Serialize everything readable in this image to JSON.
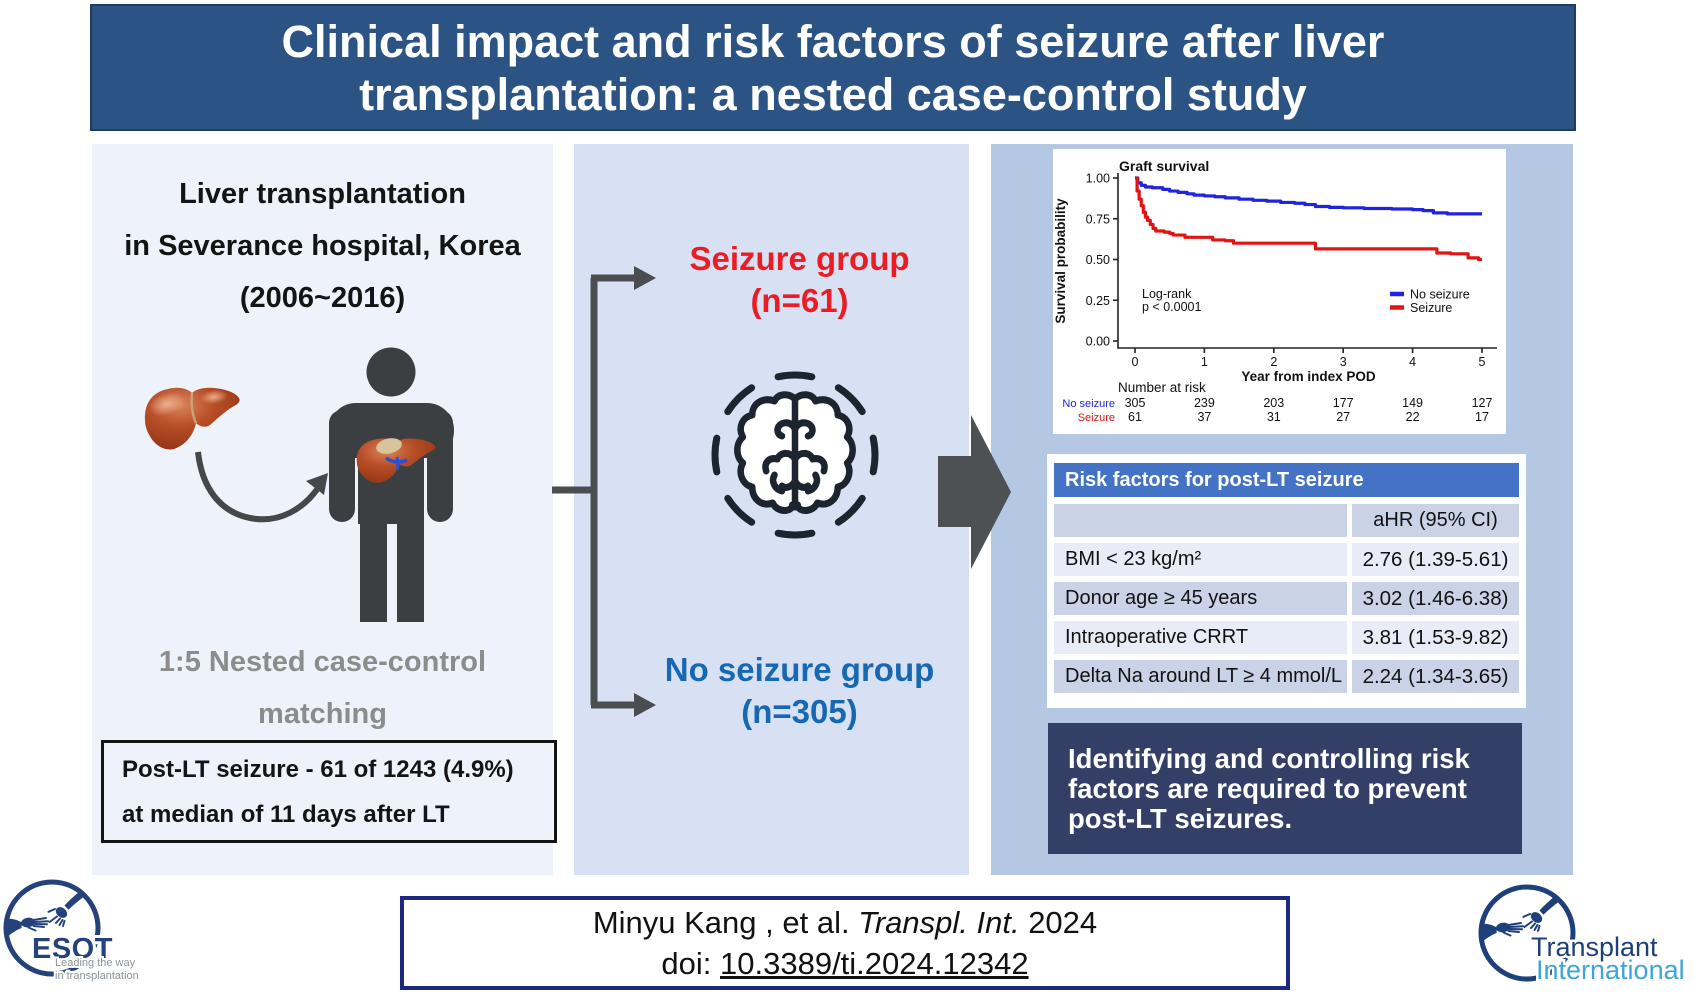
{
  "header": {
    "title_line1": "Clinical impact and risk factors of seizure after liver",
    "title_line2": "transplantation: a nested case-control study"
  },
  "left_panel": {
    "title_line1": "Liver transplantation",
    "title_line2": "in Severance hospital, Korea",
    "title_line3": "(2006~2016)",
    "matching_line1": "1:5 Nested case-control",
    "matching_line2": "matching",
    "box_line1": "Post-LT seizure - 61 of 1243 (4.9%)",
    "box_line2": "at median of 11 days after LT"
  },
  "middle_panel": {
    "seizure_group_line1": "Seizure group",
    "seizure_group_line2": "(n=61)",
    "no_seizure_group_line1": "No seizure group",
    "no_seizure_group_line2": "(n=305)",
    "seizure_color": "#ec1c24",
    "no_seizure_color": "#1668b3"
  },
  "chart_data": {
    "type": "line",
    "subtype": "kaplan-meier-step",
    "title": "Graft survival",
    "xlabel": "Year from index POD",
    "ylabel": "Survival probability",
    "xlim": [
      0,
      5
    ],
    "ylim": [
      0.0,
      1.0
    ],
    "xticks": [
      "0",
      "1",
      "2",
      "3",
      "4",
      "5"
    ],
    "yticks": [
      "0.00",
      "0.25",
      "0.50",
      "0.75",
      "1.00"
    ],
    "grid": false,
    "legend_position": "right-center",
    "annotation_line1": "Log-rank",
    "annotation_line2": "p < 0.0001",
    "series": [
      {
        "name": "No seizure",
        "color": "#1f24dd",
        "steps": [
          [
            0,
            1.0
          ],
          [
            0.04,
            0.97
          ],
          [
            0.09,
            0.955
          ],
          [
            0.15,
            0.945
          ],
          [
            0.25,
            0.94
          ],
          [
            0.4,
            0.93
          ],
          [
            0.5,
            0.92
          ],
          [
            0.62,
            0.912
          ],
          [
            0.75,
            0.903
          ],
          [
            0.85,
            0.895
          ],
          [
            1.0,
            0.89
          ],
          [
            1.15,
            0.885
          ],
          [
            1.3,
            0.878
          ],
          [
            1.5,
            0.87
          ],
          [
            1.7,
            0.863
          ],
          [
            1.9,
            0.858
          ],
          [
            2.1,
            0.85
          ],
          [
            2.3,
            0.845
          ],
          [
            2.45,
            0.837
          ],
          [
            2.6,
            0.825
          ],
          [
            2.8,
            0.82
          ],
          [
            3.0,
            0.817
          ],
          [
            3.3,
            0.813
          ],
          [
            3.7,
            0.81
          ],
          [
            4.0,
            0.806
          ],
          [
            4.15,
            0.8
          ],
          [
            4.3,
            0.786
          ],
          [
            4.5,
            0.78
          ],
          [
            5.0,
            0.78
          ]
        ]
      },
      {
        "name": "Seizure",
        "color": "#e01414",
        "steps": [
          [
            0,
            1.0
          ],
          [
            0.03,
            0.92
          ],
          [
            0.06,
            0.87
          ],
          [
            0.09,
            0.83
          ],
          [
            0.12,
            0.79
          ],
          [
            0.15,
            0.76
          ],
          [
            0.18,
            0.74
          ],
          [
            0.22,
            0.715
          ],
          [
            0.26,
            0.69
          ],
          [
            0.3,
            0.675
          ],
          [
            0.42,
            0.668
          ],
          [
            0.5,
            0.66
          ],
          [
            0.55,
            0.65
          ],
          [
            0.72,
            0.636
          ],
          [
            1.12,
            0.62
          ],
          [
            1.3,
            0.615
          ],
          [
            1.42,
            0.6
          ],
          [
            2.6,
            0.565
          ],
          [
            4.35,
            0.54
          ],
          [
            4.55,
            0.535
          ],
          [
            4.8,
            0.51
          ],
          [
            4.95,
            0.5
          ],
          [
            5.0,
            0.5
          ]
        ]
      }
    ],
    "number_at_risk": {
      "title": "Number at risk",
      "rows": [
        {
          "label": "No seizure",
          "color": "#1f24dd",
          "values": [
            "305",
            "239",
            "203",
            "177",
            "149",
            "127"
          ]
        },
        {
          "label": "Seizure",
          "color": "#e01414",
          "values": [
            "61",
            "37",
            "31",
            "27",
            "22",
            "17"
          ]
        }
      ]
    }
  },
  "risk_table": {
    "header": "Risk factors for post-LT seizure",
    "header_bg": "#4472c4",
    "col_header": "aHR (95% CI)",
    "rows": [
      {
        "label": "BMI < 23 kg/m²",
        "value": "2.76 (1.39-5.61)"
      },
      {
        "label": "Donor age ≥ 45 years",
        "value": "3.02 (1.46-6.38)"
      },
      {
        "label": "Intraoperative CRRT",
        "value": "3.81 (1.53-9.82)"
      },
      {
        "label": "Delta Na around LT ≥ 4 mmol/L",
        "value": "2.24 (1.34-3.65)"
      }
    ],
    "row_color_dark": "#c9d2e7",
    "row_color_light": "#e8ecf6"
  },
  "conclusion": {
    "line1": "Identifying and controlling risk",
    "line2": "factors are required to prevent",
    "line3": "post-LT seizures."
  },
  "citation": {
    "authors": "Minyu Kang , et al. ",
    "journal": "Transpl. Int.",
    "year": " 2024",
    "doi_prefix": "doi: ",
    "doi": "10.3389/ti.2024.12342"
  },
  "logos": {
    "esot_name": "ESOT",
    "esot_tagline_line1": "Leading the way",
    "esot_tagline_line2": "in transplantation",
    "ti_name_line1": "Transplant",
    "ti_name_line2": "International"
  }
}
